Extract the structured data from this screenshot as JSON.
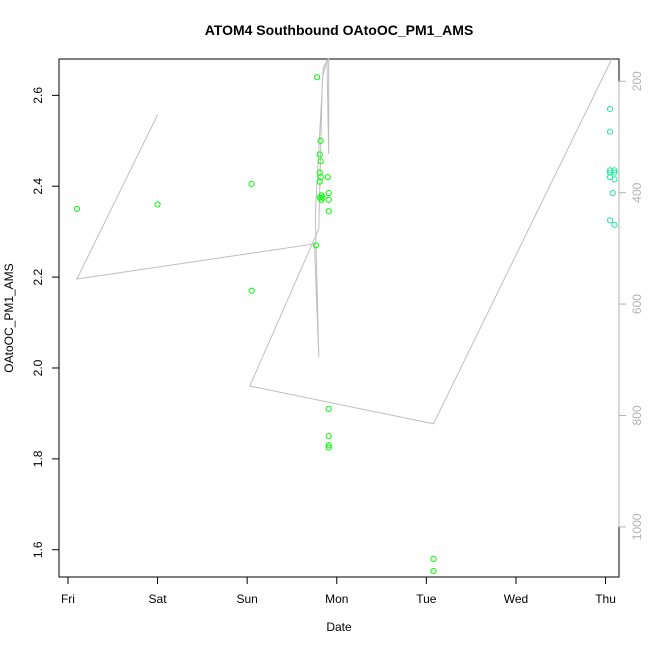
{
  "chart_data": {
    "type": "scatter",
    "title": "ATOM4 Southbound OAtoOC_PM1_AMS",
    "xlabel": "Date",
    "ylabel": "OAtoOC_PM1_AMS",
    "x_unit": "days (Fri = 0)",
    "xlim": [
      -0.1,
      6.15
    ],
    "ylim": [
      1.54,
      2.68
    ],
    "x_ticks": [
      {
        "value": 0,
        "label": "Fri"
      },
      {
        "value": 1,
        "label": "Sat"
      },
      {
        "value": 2,
        "label": "Sun"
      },
      {
        "value": 3,
        "label": "Mon"
      },
      {
        "value": 4,
        "label": "Tue"
      },
      {
        "value": 5,
        "label": "Wed"
      },
      {
        "value": 6,
        "label": "Thu"
      }
    ],
    "y_ticks": [
      1.6,
      1.8,
      2.0,
      2.2,
      2.4,
      2.6
    ],
    "y2_ticks": [
      200,
      400,
      600,
      800,
      1000
    ],
    "y2lim": [
      1090,
      160
    ],
    "grid": false,
    "series": [
      {
        "kind": "points",
        "color": "#00ff00",
        "points": [
          [
            0.1,
            2.35
          ],
          [
            1.0,
            2.36
          ],
          [
            2.05,
            2.405
          ],
          [
            2.05,
            2.17
          ],
          [
            2.78,
            2.64
          ],
          [
            2.77,
            2.27
          ],
          [
            2.82,
            2.5
          ],
          [
            2.81,
            2.47
          ],
          [
            2.82,
            2.455
          ],
          [
            2.81,
            2.43
          ],
          [
            2.82,
            2.42
          ],
          [
            2.81,
            2.41
          ],
          [
            2.83,
            2.38
          ],
          [
            2.84,
            2.375
          ],
          [
            2.81,
            2.375
          ],
          [
            2.83,
            2.37
          ],
          [
            2.9,
            2.42
          ],
          [
            2.91,
            2.385
          ],
          [
            2.91,
            2.37
          ],
          [
            2.91,
            2.345
          ],
          [
            2.91,
            1.91
          ],
          [
            2.91,
            1.85
          ],
          [
            2.91,
            1.83
          ],
          [
            2.91,
            1.825
          ],
          [
            4.08,
            1.58
          ],
          [
            4.08,
            1.553
          ]
        ]
      },
      {
        "kind": "points",
        "color": "#1ee8a0",
        "points": [
          [
            6.05,
            2.57
          ],
          [
            6.05,
            2.52
          ],
          [
            6.05,
            2.435
          ],
          [
            6.1,
            2.435
          ],
          [
            6.05,
            2.43
          ],
          [
            6.1,
            2.43
          ],
          [
            6.05,
            2.42
          ],
          [
            6.1,
            2.415
          ],
          [
            6.08,
            2.385
          ],
          [
            6.05,
            2.325
          ],
          [
            6.1,
            2.315
          ]
        ]
      },
      {
        "kind": "line",
        "color": "#bebebe",
        "axis": "y2",
        "points": [
          [
            1.0,
            260
          ],
          [
            0.1,
            555
          ],
          [
            2.75,
            492
          ],
          [
            2.8,
            695
          ],
          [
            2.76,
            440
          ],
          [
            2.85,
            175
          ],
          [
            2.91,
            160
          ],
          [
            2.91,
            330
          ],
          [
            2.89,
            160
          ],
          [
            2.84,
            195
          ],
          [
            2.8,
            465
          ],
          [
            2.03,
            747
          ],
          [
            4.08,
            815
          ],
          [
            6.07,
            160
          ]
        ]
      }
    ]
  }
}
